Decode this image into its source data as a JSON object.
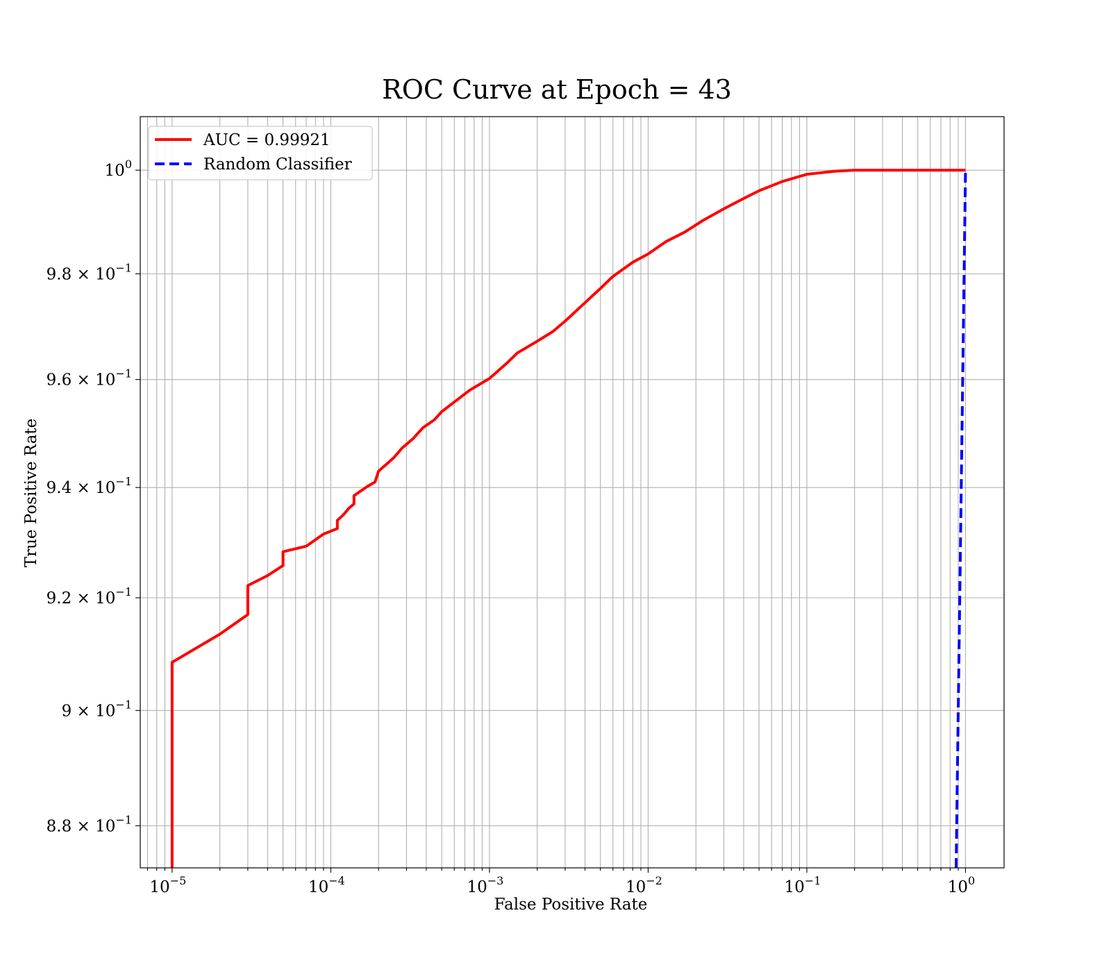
{
  "chart_data": {
    "type": "line",
    "title": "ROC Curve at Epoch = 43",
    "xlabel": "False Positive Rate",
    "ylabel": "True Positive Rate",
    "xscale": "log",
    "yscale": "log",
    "xlim": [
      6.3e-06,
      1.75
    ],
    "ylim": [
      0.8728,
      1.0105
    ],
    "grid": "both",
    "legend_position": "top-left",
    "x_ticks": [
      {
        "base": "10",
        "exp": "−5",
        "value": 1e-05
      },
      {
        "base": "10",
        "exp": "−4",
        "value": 0.0001
      },
      {
        "base": "10",
        "exp": "−3",
        "value": 0.001
      },
      {
        "base": "10",
        "exp": "−2",
        "value": 0.01
      },
      {
        "base": "10",
        "exp": "−1",
        "value": 0.1
      },
      {
        "base": "10",
        "exp": "0",
        "value": 1
      }
    ],
    "y_ticks": [
      {
        "base": "8.8 × 10",
        "exp": "−1",
        "value": 0.88
      },
      {
        "base": "9 × 10",
        "exp": "−1",
        "value": 0.9
      },
      {
        "base": "9.2 × 10",
        "exp": "−1",
        "value": 0.92
      },
      {
        "base": "9.4 × 10",
        "exp": "−1",
        "value": 0.94
      },
      {
        "base": "9.6 × 10",
        "exp": "−1",
        "value": 0.96
      },
      {
        "base": "9.8 × 10",
        "exp": "−1",
        "value": 0.98
      },
      {
        "base": "10",
        "exp": "0",
        "value": 1.0
      }
    ],
    "series": [
      {
        "name": "AUC = 0.99921",
        "color": "#ff0000",
        "style": "solid",
        "points": [
          [
            1e-05,
            0.8728
          ],
          [
            1e-05,
            0.9085
          ],
          [
            2e-05,
            0.9135
          ],
          [
            3e-05,
            0.917
          ],
          [
            3e-05,
            0.9222
          ],
          [
            4e-05,
            0.924
          ],
          [
            5e-05,
            0.9258
          ],
          [
            5e-05,
            0.9283
          ],
          [
            7e-05,
            0.9293
          ],
          [
            9e-05,
            0.9315
          ],
          [
            0.00011,
            0.9325
          ],
          [
            0.00011,
            0.934
          ],
          [
            0.00012,
            0.935
          ],
          [
            0.00013,
            0.9362
          ],
          [
            0.00014,
            0.937
          ],
          [
            0.00014,
            0.9385
          ],
          [
            0.00017,
            0.9402
          ],
          [
            0.00019,
            0.941
          ],
          [
            0.0002,
            0.943
          ],
          [
            0.00025,
            0.9455
          ],
          [
            0.00028,
            0.9472
          ],
          [
            0.00033,
            0.949
          ],
          [
            0.00038,
            0.951
          ],
          [
            0.00045,
            0.9525
          ],
          [
            0.0005,
            0.954
          ],
          [
            0.0006,
            0.9558
          ],
          [
            0.00075,
            0.958
          ],
          [
            0.001,
            0.9602
          ],
          [
            0.0013,
            0.9632
          ],
          [
            0.0015,
            0.965
          ],
          [
            0.002,
            0.9672
          ],
          [
            0.0025,
            0.969
          ],
          [
            0.003,
            0.971
          ],
          [
            0.004,
            0.9745
          ],
          [
            0.005,
            0.9772
          ],
          [
            0.006,
            0.9795
          ],
          [
            0.008,
            0.9822
          ],
          [
            0.01,
            0.9838
          ],
          [
            0.013,
            0.9862
          ],
          [
            0.017,
            0.988
          ],
          [
            0.022,
            0.9902
          ],
          [
            0.03,
            0.9925
          ],
          [
            0.04,
            0.9945
          ],
          [
            0.05,
            0.996
          ],
          [
            0.07,
            0.9978
          ],
          [
            0.1,
            0.9992
          ],
          [
            0.15,
            0.9998
          ],
          [
            0.2,
            1.0
          ],
          [
            1.0,
            1.0
          ]
        ]
      },
      {
        "name": "Random Classifier",
        "color": "#0000ff",
        "style": "dashed",
        "points": [
          [
            0.8728,
            0.8728
          ],
          [
            1.0,
            1.0
          ]
        ]
      }
    ]
  }
}
